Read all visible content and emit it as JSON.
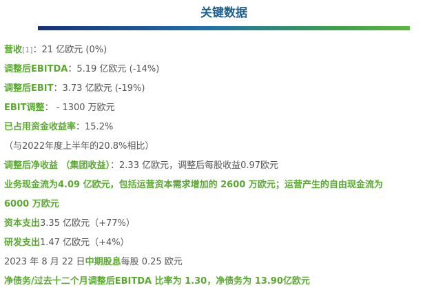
{
  "header": {
    "title": "关键数据"
  },
  "items": [
    [
      {
        "text": "营收",
        "color": "#5aa832"
      },
      {
        "text": "[1]",
        "color": "#888888"
      },
      {
        "text": "：21 亿欧元 (0%)",
        "color": "#555555"
      }
    ],
    [
      {
        "text": "调整后EBITDA",
        "color": "#5aa832"
      },
      {
        "text": "：5.19 亿欧元 (-14%)",
        "color": "#555555"
      }
    ],
    [
      {
        "text": "调整后EBIT",
        "color": "#5aa832"
      },
      {
        "text": "：3.73 亿欧元 (-19%)",
        "color": "#555555"
      }
    ],
    [
      {
        "text": "EBIT调整",
        "color": "#5aa832"
      },
      {
        "text": "：  - 1300 万欧元",
        "color": "#555555"
      }
    ],
    [
      {
        "text": "已占用资金收益率",
        "color": "#5aa832"
      },
      {
        "text": "：15.2%",
        "color": "#555555"
      }
    ],
    [
      {
        "text": "（与2022年度上半年的20.8%相比）",
        "color": "#555555"
      }
    ],
    [
      {
        "text": "调整后净收益 （集团收益）",
        "color": "#5aa832"
      },
      {
        "text": "：2.33 亿欧元，调整后每股收益0.97欧元",
        "color": "#555555"
      }
    ],
    [
      {
        "text": "业务现金流为4.09 亿欧元，包括运营资本需求增加的 2600 万欧元；运营产生的自由现金流为",
        "color": "#5aa832"
      }
    ],
    [
      {
        "text": "6000 万欧元",
        "color": "#5aa832"
      }
    ],
    [
      {
        "text": "资本支出",
        "color": "#5aa832"
      },
      {
        "text": "3.35 亿欧元（+77%）",
        "color": "#555555"
      }
    ],
    [
      {
        "text": "研发支出",
        "color": "#5aa832"
      },
      {
        "text": "1.47 亿欧元（+4%）",
        "color": "#555555"
      }
    ],
    [
      {
        "text": "2023 年 8 月 22 日",
        "color": "#555555"
      },
      {
        "text": "中期股息",
        "color": "#5aa832"
      },
      {
        "text": "每股 0.25 欧元",
        "color": "#555555"
      }
    ],
    [
      {
        "text": "净债务/过去十二个月调整后EBITDA 比率为 1.30，净债务为 13.90亿欧元",
        "color": "#5aa832"
      }
    ]
  ]
}
